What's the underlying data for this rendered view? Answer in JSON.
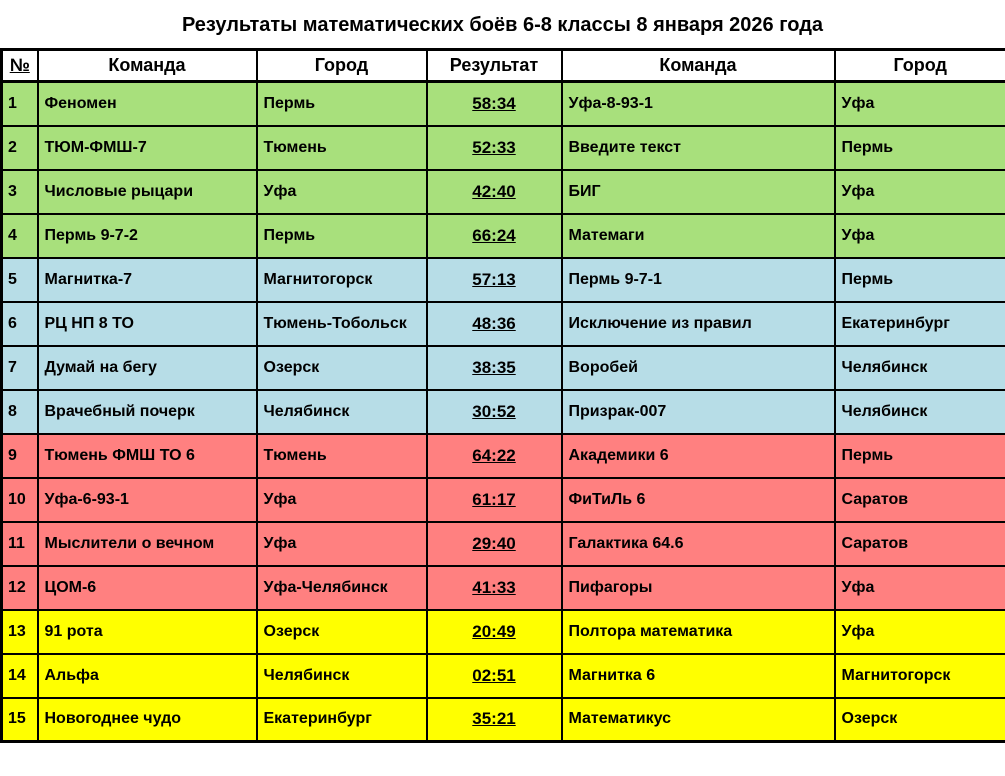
{
  "title": "Результаты математических боёв 6-8 классы 8 января 2026 года",
  "colors": {
    "green": "#A8E07C",
    "blue": "#B7DDE7",
    "red": "#FF8080",
    "yellow": "#FFFF00",
    "border": "#000000",
    "header_bg": "#FFFFFF"
  },
  "table": {
    "headers": [
      "№",
      "Команда",
      "Город",
      "Результат",
      "Команда",
      "Город"
    ],
    "rows": [
      {
        "num": "1",
        "team1": "Феномен",
        "city1": "Пермь",
        "result": "58:34",
        "team2": "Уфа-8-93-1",
        "city2": "Уфа",
        "group": "green"
      },
      {
        "num": "2",
        "team1": "ТЮМ-ФМШ-7",
        "city1": "Тюмень",
        "result": "52:33",
        "team2": "Введите текст",
        "city2": "Пермь",
        "group": "green"
      },
      {
        "num": "3",
        "team1": "Числовые рыцари",
        "city1": "Уфа",
        "result": "42:40",
        "team2": "БИГ",
        "city2": "Уфа",
        "group": "green"
      },
      {
        "num": "4",
        "team1": "Пермь 9-7-2",
        "city1": "Пермь",
        "result": "66:24",
        "team2": "Матемаги",
        "city2": "Уфа",
        "group": "green"
      },
      {
        "num": "5",
        "team1": "Магнитка-7",
        "city1": "Магнитогорск",
        "result": "57:13",
        "team2": "Пермь 9-7-1",
        "city2": "Пермь",
        "group": "blue"
      },
      {
        "num": "6",
        "team1": "РЦ НП 8 ТО",
        "city1": "Тюмень-Тобольск",
        "result": "48:36",
        "team2": "Исключение из правил",
        "city2": "Екатеринбург",
        "group": "blue"
      },
      {
        "num": "7",
        "team1": "Думай на бегу",
        "city1": "Озерск",
        "result": "38:35",
        "team2": "Воробей",
        "city2": "Челябинск",
        "group": "blue"
      },
      {
        "num": "8",
        "team1": "Врачебный почерк",
        "city1": "Челябинск",
        "result": "30:52",
        "team2": "Призрак-007",
        "city2": "Челябинск",
        "group": "blue"
      },
      {
        "num": "9",
        "team1": "Тюмень ФМШ ТО 6",
        "city1": "Тюмень",
        "result": "64:22",
        "team2": "Академики 6",
        "city2": "Пермь",
        "group": "red"
      },
      {
        "num": "10",
        "team1": "Уфа-6-93-1",
        "city1": "Уфа",
        "result": "61:17",
        "team2": "ФиТиЛь 6",
        "city2": "Саратов",
        "group": "red"
      },
      {
        "num": "11",
        "team1": "Мыслители о вечном",
        "city1": "Уфа",
        "result": "29:40",
        "team2": "Галактика 64.6",
        "city2": "Саратов",
        "group": "red"
      },
      {
        "num": "12",
        "team1": "ЦОМ-6",
        "city1": "Уфа-Челябинск",
        "result": "41:33",
        "team2": "Пифагоры",
        "city2": "Уфа",
        "group": "red"
      },
      {
        "num": "13",
        "team1": "91 рота",
        "city1": "Озерск",
        "result": "20:49",
        "team2": "Полтора математика",
        "city2": "Уфа",
        "group": "yellow"
      },
      {
        "num": "14",
        "team1": "Альфа",
        "city1": "Челябинск",
        "result": "02:51",
        "team2": "Магнитка 6",
        "city2": "Магнитогорск",
        "group": "yellow"
      },
      {
        "num": "15",
        "team1": "Новогоднее чудо",
        "city1": "Екатеринбург",
        "result": "35:21",
        "team2": "Математикус",
        "city2": "Озерск",
        "group": "yellow"
      }
    ]
  }
}
